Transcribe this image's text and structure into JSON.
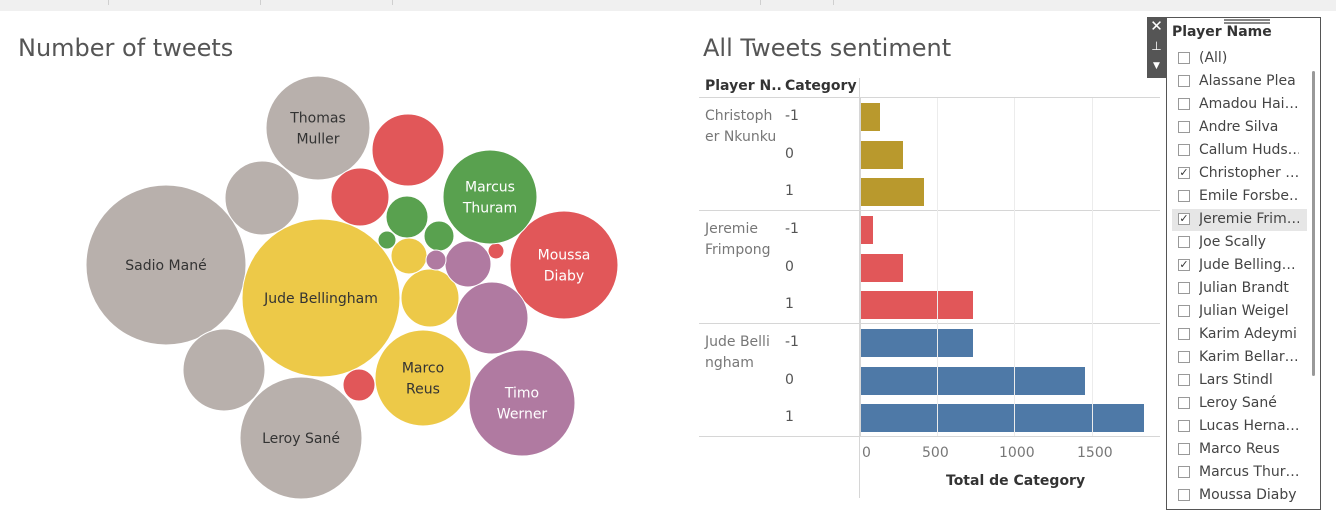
{
  "bubble_title": "Number of tweets",
  "sentiment_title": "All Tweets sentiment",
  "table": {
    "col_player": "Player N..",
    "col_category": "Category",
    "axis_title": "Total de Category",
    "ticks": [
      "0",
      "500",
      "1000",
      "1500"
    ]
  },
  "colors": {
    "grey": "#b8b0ac",
    "yellow": "#edc948",
    "red": "#e15759",
    "green": "#59a14f",
    "purple": "#b07aa1",
    "olive": "#b9992d",
    "blue": "#4e79a7"
  },
  "bubbles": [
    {
      "label": "Thomas\nMuller",
      "color": "grey"
    },
    {
      "label": "",
      "color": "grey"
    },
    {
      "label": "Sadio Mané",
      "color": "grey"
    },
    {
      "label": "",
      "color": "grey"
    },
    {
      "label": "Leroy Sané",
      "color": "grey"
    },
    {
      "label": "Jude Bellingham",
      "color": "yellow"
    },
    {
      "label": "",
      "color": "yellow"
    },
    {
      "label": "",
      "color": "yellow"
    },
    {
      "label": "Marco\nReus",
      "color": "yellow"
    },
    {
      "label": "",
      "color": "red"
    },
    {
      "label": "",
      "color": "red"
    },
    {
      "label": "Moussa\nDiaby",
      "color": "red"
    },
    {
      "label": "",
      "color": "red"
    },
    {
      "label": "",
      "color": "red"
    },
    {
      "label": "Marcus\nThuram",
      "color": "green"
    },
    {
      "label": "",
      "color": "green"
    },
    {
      "label": "",
      "color": "green"
    },
    {
      "label": "",
      "color": "green"
    },
    {
      "label": "",
      "color": "purple"
    },
    {
      "label": "",
      "color": "purple"
    },
    {
      "label": "",
      "color": "purple"
    },
    {
      "label": "Timo\nWerner",
      "color": "purple"
    }
  ],
  "chart_data": {
    "type": "bar",
    "title": "All Tweets sentiment",
    "xlabel": "Total de Category",
    "xlim": [
      0,
      1850
    ],
    "groups": [
      {
        "player": "Christopher Nkunku",
        "color": "olive",
        "rows": [
          {
            "category": "-1",
            "value": 130
          },
          {
            "category": "0",
            "value": 280
          },
          {
            "category": "1",
            "value": 415
          }
        ]
      },
      {
        "player": "Jeremie Frimpong",
        "color": "red",
        "rows": [
          {
            "category": "-1",
            "value": 85
          },
          {
            "category": "0",
            "value": 280
          },
          {
            "category": "1",
            "value": 730
          }
        ]
      },
      {
        "player": "Jude Bellingham",
        "color": "blue",
        "rows": [
          {
            "category": "-1",
            "value": 730
          },
          {
            "category": "0",
            "value": 1460
          },
          {
            "category": "1",
            "value": 1840
          }
        ]
      }
    ]
  },
  "filter": {
    "title": "Player Name",
    "items": [
      {
        "label": "(All)",
        "checked": false
      },
      {
        "label": "Alassane Plea",
        "checked": false
      },
      {
        "label": "Amadou Hai…",
        "checked": false
      },
      {
        "label": "Andre Silva",
        "checked": false
      },
      {
        "label": "Callum Huds…",
        "checked": false
      },
      {
        "label": "Christopher …",
        "checked": true
      },
      {
        "label": "Emile Forsbe…",
        "checked": false
      },
      {
        "label": "Jeremie Frim…",
        "checked": true
      },
      {
        "label": "Joe Scally",
        "checked": false
      },
      {
        "label": "Jude Belling…",
        "checked": true
      },
      {
        "label": "Julian Brandt",
        "checked": false
      },
      {
        "label": "Julian Weigel",
        "checked": false
      },
      {
        "label": "Karim Adeymi",
        "checked": false
      },
      {
        "label": "Karim Bellar…",
        "checked": false
      },
      {
        "label": "Lars Stindl",
        "checked": false
      },
      {
        "label": "Leroy Sané",
        "checked": false
      },
      {
        "label": "Lucas Herna…",
        "checked": false
      },
      {
        "label": "Marco Reus",
        "checked": false
      },
      {
        "label": "Marcus Thur…",
        "checked": false
      },
      {
        "label": "Moussa Diaby",
        "checked": false
      }
    ]
  }
}
